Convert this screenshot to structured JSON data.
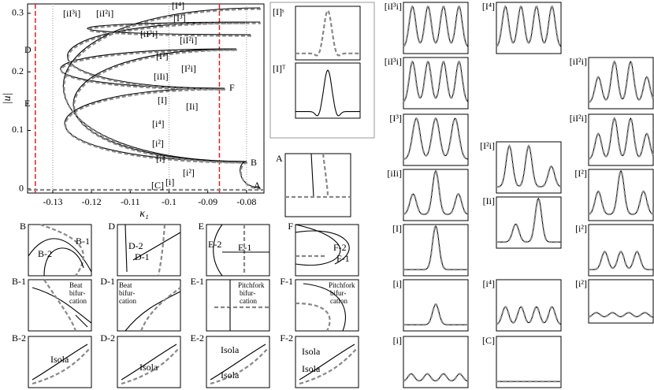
{
  "main_plot": {
    "xlabel": "κ₁",
    "ylabel": "|u|",
    "xlim": [
      -0.1365,
      -0.0755
    ],
    "ylim": [
      -0.007,
      0.316
    ],
    "xticks": [
      -0.13,
      -0.12,
      -0.11,
      -0.1,
      -0.09,
      -0.08
    ],
    "yticks": [
      0,
      0.1,
      0.2,
      0.3
    ],
    "reference_lines": [
      -0.1345,
      -0.087
    ],
    "guide_lines": [
      -0.13,
      -0.1,
      -0.08
    ],
    "curve_labels": [
      "[iI³i]",
      "[iI²i]",
      "[I⁴]",
      "[I³]",
      "[iI³i]",
      "[iI²i]",
      "[I²]",
      "[I²i]",
      "[iIi]",
      "[I]",
      "[Ii]",
      "[i⁴]",
      "[i²]",
      "[i]",
      "[i²]",
      "[i]",
      "[C]"
    ],
    "point_labels": [
      "A",
      "B",
      "D",
      "E",
      "F"
    ]
  },
  "inset_labels": {
    "S": "[I]ˢ",
    "T": "[I]ᵀ",
    "A": "A"
  },
  "detail_panels": [
    {
      "label": "B",
      "notes": [
        "B-1",
        "B-2"
      ]
    },
    {
      "label": "D",
      "notes": [
        "D-2",
        "D-1"
      ]
    },
    {
      "label": "E",
      "notes": [
        "E-2",
        "E-1"
      ]
    },
    {
      "label": "F",
      "notes": [
        "F-2",
        "F-1"
      ]
    },
    {
      "label": "B-1",
      "notes": [
        "Beat",
        "bifur-",
        "cation"
      ]
    },
    {
      "label": "D-1",
      "notes": [
        "Beat",
        "bifur-",
        "cation"
      ]
    },
    {
      "label": "E-1",
      "notes": [
        "Pitchfork",
        "bifur-",
        "cation"
      ]
    },
    {
      "label": "F-1",
      "notes": [
        "Pitchfork",
        "bifur-",
        "cation"
      ]
    },
    {
      "label": "B-2",
      "notes": [
        "Isola"
      ]
    },
    {
      "label": "D-2",
      "notes": [
        "Isola"
      ]
    },
    {
      "label": "E-2",
      "notes": [
        "Isola",
        "Isola"
      ]
    },
    {
      "label": "F-2",
      "notes": [
        "Isola",
        "Isola"
      ]
    }
  ],
  "profile_panels": [
    "[iI³i]",
    "[iI³i]",
    "[I³]",
    "[iIi]",
    "[I]",
    "[i]",
    "[i]",
    "[I⁴]",
    "[I²i]",
    "[Ii]",
    "[i⁴]",
    "[C]",
    "[iI²i]",
    "[iI²i]",
    "[I²]",
    "[i²]",
    "[i²]"
  ]
}
